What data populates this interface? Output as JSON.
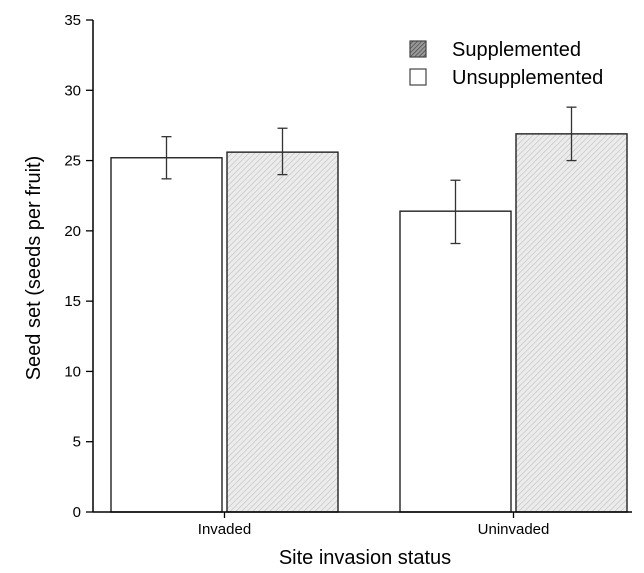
{
  "chart_data": {
    "type": "bar",
    "xlabel": "Site invasion status",
    "ylabel": "Seed set (seeds per fruit)",
    "categories": [
      "Invaded",
      "Uninvaded"
    ],
    "ylim": [
      0,
      35
    ],
    "yticks": [
      0,
      5,
      10,
      15,
      20,
      25,
      30,
      35
    ],
    "grid": false,
    "legend_position": "top-right",
    "series": [
      {
        "name": "Unsupplemented",
        "values": [
          25.2,
          21.4
        ],
        "error_low": [
          23.7,
          19.1
        ],
        "error_high": [
          26.7,
          23.6
        ],
        "fill": "#ffffff",
        "pattern": "none"
      },
      {
        "name": "Supplemented",
        "values": [
          25.6,
          26.9
        ],
        "error_low": [
          24.0,
          25.0
        ],
        "error_high": [
          27.3,
          28.8
        ],
        "fill": "#e6e6e6",
        "pattern": "diagonal-hatch"
      }
    ],
    "legend_order": [
      "Supplemented",
      "Unsupplemented"
    ]
  }
}
